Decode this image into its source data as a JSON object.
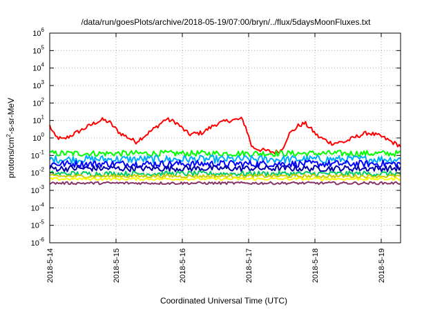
{
  "chart_data": {
    "type": "line",
    "title": "/data/run/goesPlots/archive/2018-05-19/07:00/bryn/../flux/5daysMoonFluxes.txt",
    "xlabel": "Coordinated Universal Time (UTC)",
    "ylabel": {
      "prefix": "protons/cm",
      "sup": "2",
      "suffix": "-s-sr-MeV"
    },
    "y_scale": "log",
    "ylim_exp": [
      -6,
      6
    ],
    "y_tick_exponents": [
      -6,
      -5,
      -4,
      -3,
      -2,
      -1,
      0,
      1,
      2,
      3,
      4,
      5,
      6
    ],
    "x_start": "2018-05-14",
    "x_end": "2018-05-19 07:00",
    "x_ticks": [
      "2018-5-14",
      "2018-5-15",
      "2018-5-16",
      "2018-5-17",
      "2018-5-18",
      "2018-5-19"
    ],
    "grid": "dotted",
    "legend": "none",
    "series": [
      {
        "color": "#ff0000",
        "profile": [
          [
            0,
            5
          ],
          [
            0.08,
            1.2
          ],
          [
            0.2,
            0.8
          ],
          [
            0.45,
            2.5
          ],
          [
            0.7,
            8
          ],
          [
            0.8,
            11
          ],
          [
            0.9,
            8
          ],
          [
            1.05,
            2
          ],
          [
            1.3,
            0.6
          ],
          [
            1.45,
            1.5
          ],
          [
            1.6,
            4
          ],
          [
            1.75,
            12
          ],
          [
            1.9,
            8
          ],
          [
            2.1,
            1.6
          ],
          [
            2.3,
            2
          ],
          [
            2.5,
            6
          ],
          [
            2.7,
            10
          ],
          [
            2.9,
            12
          ],
          [
            2.95,
            5
          ],
          [
            3.05,
            0.3
          ],
          [
            3.2,
            0.2
          ],
          [
            3.4,
            0.15
          ],
          [
            3.5,
            0.2
          ],
          [
            3.6,
            1.5
          ],
          [
            3.75,
            5
          ],
          [
            3.85,
            7
          ],
          [
            3.95,
            3
          ],
          [
            4.05,
            1.2
          ],
          [
            4.25,
            0.5
          ],
          [
            4.45,
            0.6
          ],
          [
            4.65,
            1.3
          ],
          [
            4.8,
            2
          ],
          [
            5.0,
            1.2
          ],
          [
            5.2,
            0.5
          ],
          [
            5.29,
            0.35
          ]
        ],
        "noise": 0.25
      },
      {
        "color": "#00ff00",
        "profile": [
          [
            0,
            0.13
          ],
          [
            5.29,
            0.13
          ]
        ],
        "noise": 0.35
      },
      {
        "color": "#00aaff",
        "profile": [
          [
            0,
            0.06
          ],
          [
            5.29,
            0.06
          ]
        ],
        "noise": 0.45
      },
      {
        "color": "#0000ff",
        "profile": [
          [
            0,
            0.033
          ],
          [
            5.29,
            0.033
          ]
        ],
        "noise": 0.4
      },
      {
        "color": "#0000aa",
        "profile": [
          [
            0,
            0.018
          ],
          [
            5.29,
            0.018
          ]
        ],
        "noise": 0.35
      },
      {
        "color": "#00cc66",
        "profile": [
          [
            0,
            0.009
          ],
          [
            5.29,
            0.009
          ]
        ],
        "noise": 0.3
      },
      {
        "color": "#cccc00",
        "profile": [
          [
            0,
            0.0065
          ],
          [
            5.29,
            0.0065
          ]
        ],
        "noise": 0.2
      },
      {
        "color": "#ffff00",
        "profile": [
          [
            0,
            0.0045
          ],
          [
            5.29,
            0.0045
          ]
        ],
        "noise": 0.15
      },
      {
        "color": "#883366",
        "profile": [
          [
            0,
            0.0026
          ],
          [
            5.29,
            0.0026
          ]
        ],
        "noise": 0.15
      }
    ]
  }
}
